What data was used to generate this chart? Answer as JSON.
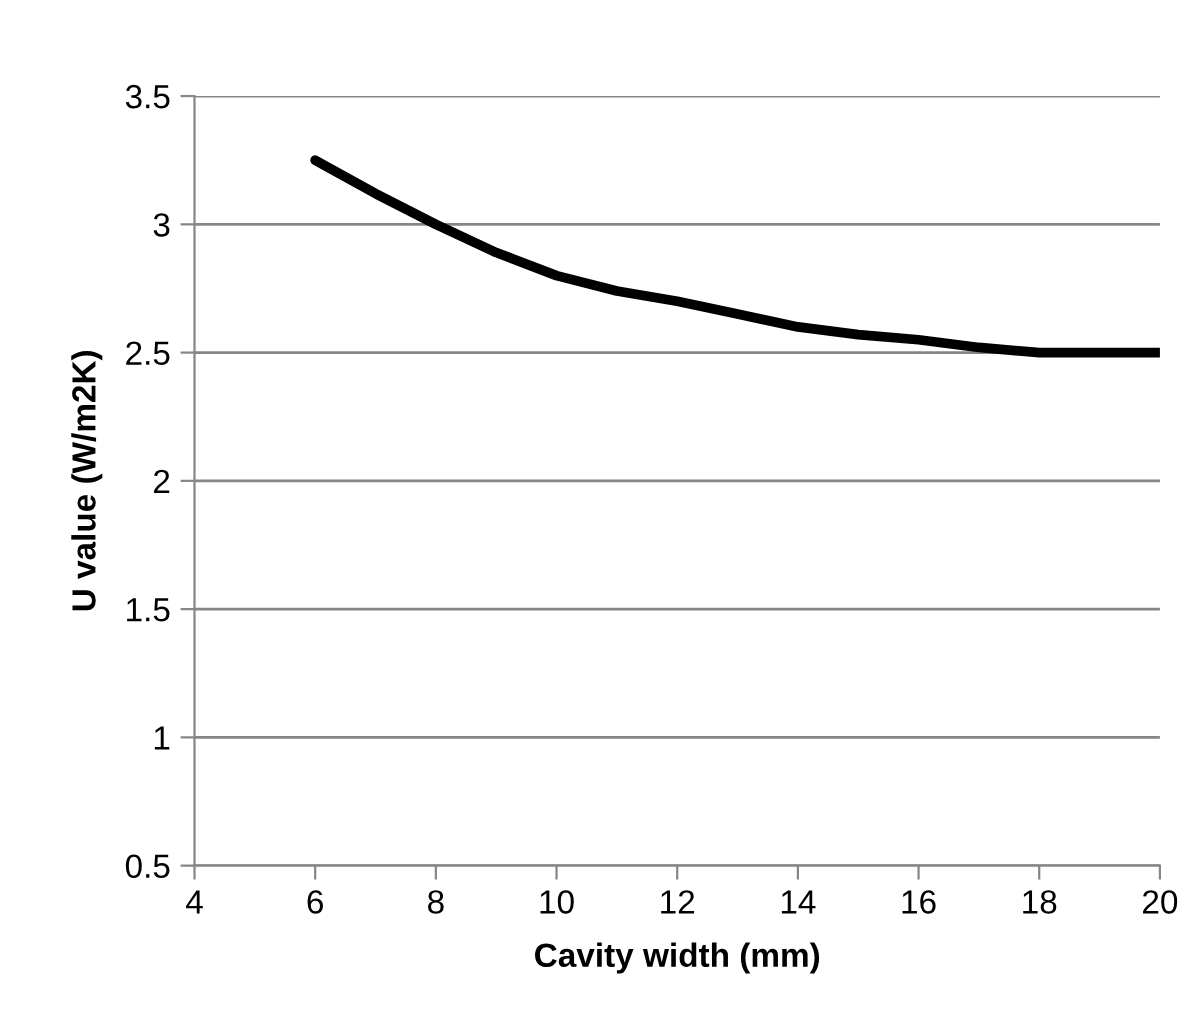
{
  "chart_data": {
    "type": "line",
    "xlabel": "Cavity width (mm)",
    "ylabel": "U value (W/m2K)",
    "x": [
      6,
      7,
      8,
      9,
      10,
      11,
      12,
      13,
      14,
      15,
      16,
      17,
      18,
      19,
      20
    ],
    "series": [
      {
        "color": "#000000",
        "values": [
          3.25,
          3.12,
          3.0,
          2.89,
          2.8,
          2.74,
          2.7,
          2.65,
          2.6,
          2.57,
          2.55,
          2.52,
          2.5,
          2.5,
          2.5
        ]
      }
    ],
    "xlim": [
      4,
      20
    ],
    "ylim": [
      0.5,
      3.5
    ],
    "xticks": [
      4,
      6,
      8,
      10,
      12,
      14,
      16,
      18,
      20
    ],
    "yticks": [
      0.5,
      1,
      1.5,
      2,
      2.5,
      3,
      3.5
    ],
    "grid": "y",
    "legend": false,
    "marker": "none",
    "line_style": "solid"
  }
}
